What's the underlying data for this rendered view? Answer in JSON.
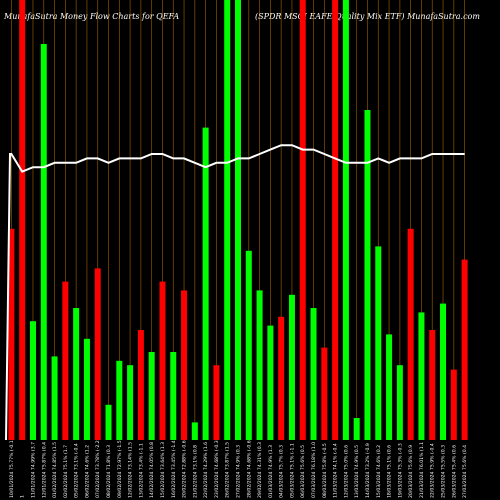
{
  "header": {
    "left_title": "MunafaSutra  Money Flow  Charts for QEFA",
    "right_title": "(SPDR MSCI EAFE Quality Mix ETF) MunafaSutra.com"
  },
  "chart_data": {
    "type": "bar",
    "title": "MunafaSutra  Money Flow  Charts for QEFA",
    "subtitle": "(SPDR MSCI EAFE Quality Mix ETF) MunafaSutra.com",
    "colors": {
      "up": "#00ff00",
      "down": "#ff0000",
      "line": "#ffffff",
      "grid": "#ff9900",
      "background": "#000000"
    },
    "ylim": [
      0,
      100
    ],
    "categories": [
      "10/01/2024 75.77% (-0.1",
      "1",
      "11/01/2024 74.99% (3.7",
      "12/01/2024 75.87% (0.4",
      "01/02/2024 74.85% (1.5",
      "02/02/2024 75.1% (1.7",
      "05/02/2024 73.1% (-0.4",
      "06/02/2024 74.6% (1.2",
      "07/02/2024 73.78% (-2.2",
      "08/02/2024 71.8% (0.3",
      "09/02/2024 72.97% (-1.5",
      "12/02/2024 73.14% (1.5",
      "13/02/2024 73.4% (-1.1",
      "14/02/2024 74.05% (0.8",
      "15/02/2024 73.64% (1.3",
      "16/02/2024 73.45% (-1.4",
      "20/02/2024 72.88% (-0.6",
      "21/02/2024 73.1% (0.8",
      "22/02/2024 74.29% (1.6",
      "23/02/2024 74.68% (-0.3",
      "26/02/2024 73.87% (1.5",
      "27/02/2024 74.9% (0.3",
      "28/02/2024 74.68% (-0.6",
      "29/02/2024 74.31% (0.3",
      "01/03/2024 74.9% (1.3",
      "04/03/2024 75.7% (0.3",
      "05/03/2024 75.1% (-1.1",
      "06/03/2024 75.6% (0.5",
      "07/03/2024 76.18% (1.0",
      "08/03/2024 75.8% (-0.5",
      "11/03/2024 74.1% (-0.4",
      "12/03/2024 75.0% (0.6",
      "13/03/2024 74.9% (0.5",
      "14/03/2024 73.2% (-0.9",
      "15/03/2024 74.6% (0.2",
      "18/03/2024 75.1% (0.6",
      "19/03/2024 75.3% (-0.3",
      "20/03/2024 75.6% (0.9",
      "21/03/2024 76.01% (1.1",
      "22/03/2024 75.9% (-0.4",
      "25/03/2024 75.5% (0.3",
      "26/03/2024 75.4% (0.6",
      "27/03/2024 75.6% (0.4"
    ],
    "values": [
      48,
      100,
      27,
      90,
      19,
      36,
      30,
      23,
      39,
      8,
      18,
      17,
      25,
      20,
      36,
      20,
      34,
      4,
      71,
      17,
      100,
      100,
      43,
      34,
      26,
      28,
      33,
      100,
      30,
      21,
      100,
      100,
      5,
      75,
      44,
      24,
      17,
      48,
      29,
      25,
      31,
      16,
      41
    ],
    "directions": [
      "down",
      "down",
      "up",
      "up",
      "up",
      "down",
      "up",
      "up",
      "down",
      "up",
      "up",
      "up",
      "down",
      "up",
      "down",
      "up",
      "down",
      "up",
      "up",
      "down",
      "up",
      "up",
      "up",
      "up",
      "up",
      "down",
      "up",
      "down",
      "up",
      "down",
      "down",
      "up",
      "up",
      "up",
      "up",
      "up",
      "up",
      "down",
      "up",
      "down",
      "up",
      "down",
      "down"
    ],
    "price_line": [
      65,
      61,
      62,
      62,
      63,
      63,
      63,
      64,
      64,
      63,
      64,
      64,
      64,
      65,
      65,
      64,
      64,
      63,
      62,
      63,
      63,
      64,
      64,
      65,
      66,
      67,
      67,
      66,
      66,
      65,
      64,
      63,
      63,
      63,
      64,
      63,
      64,
      64,
      64,
      65,
      65,
      65,
      65
    ]
  }
}
